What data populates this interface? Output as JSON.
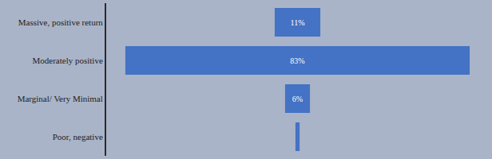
{
  "chart_data": {
    "type": "funnel",
    "orientation": "horizontal",
    "categories": [
      "Massive, positive return",
      "Moderately positive",
      "Marginal/ Very Minimal",
      "Poor, negative"
    ],
    "values": [
      11,
      83,
      6,
      1
    ],
    "value_labels": [
      "11%",
      "83%",
      "6%",
      null
    ],
    "data_labels": true,
    "tick_labels": "y",
    "grid": false,
    "color": "#4472c4"
  }
}
